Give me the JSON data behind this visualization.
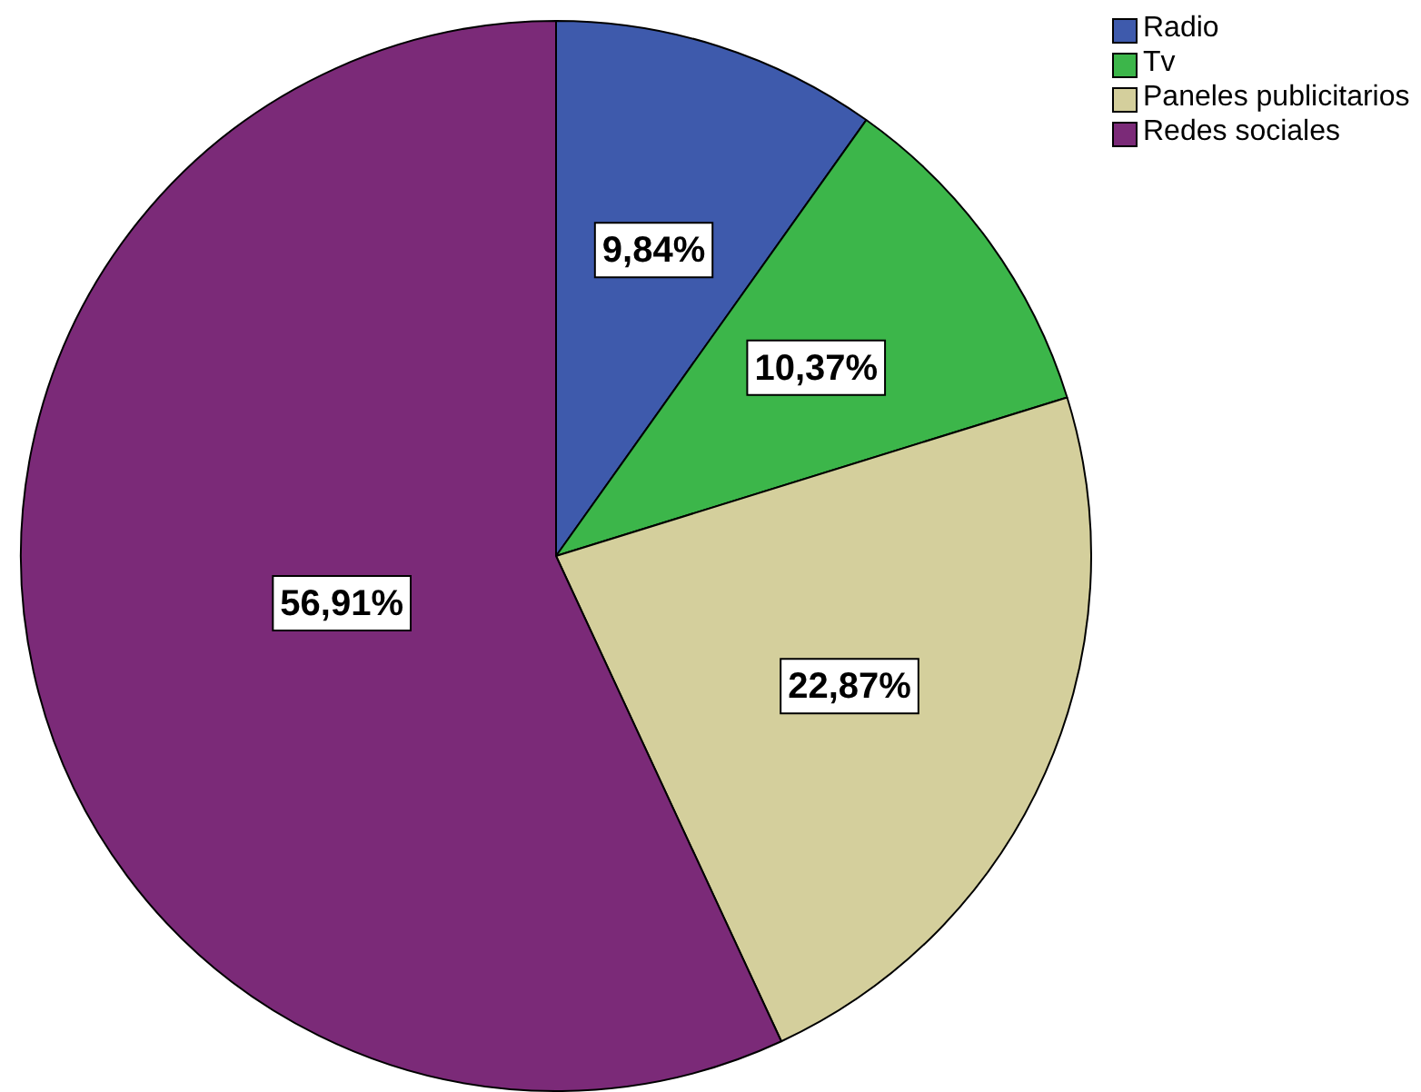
{
  "chart_data": {
    "type": "pie",
    "categories": [
      "Radio",
      "Tv",
      "Paneles publicitarios",
      "Redes sociales"
    ],
    "values": [
      9.84,
      10.37,
      22.87,
      56.91
    ],
    "colors": [
      "#3e5aac",
      "#3cb64a",
      "#d4cf9c",
      "#7b2a78"
    ],
    "value_labels": [
      "9,84%",
      "10,37%",
      "22,87%",
      "56,91%"
    ],
    "legend": "top right"
  }
}
